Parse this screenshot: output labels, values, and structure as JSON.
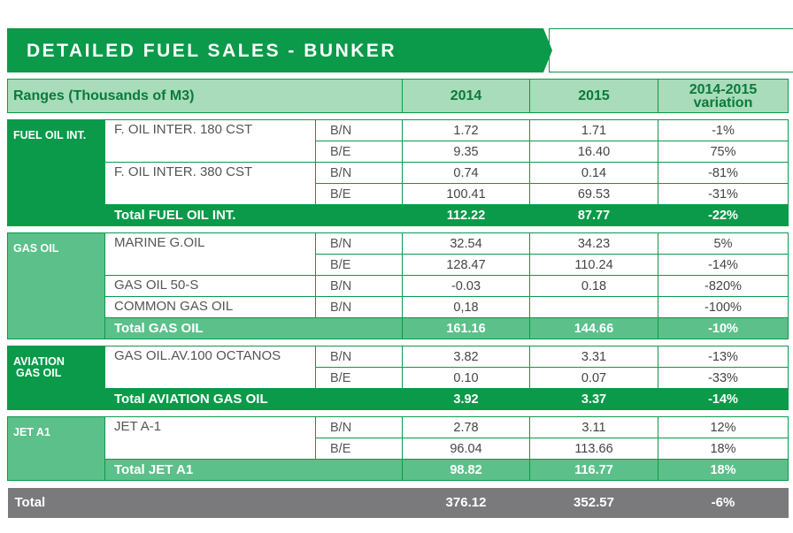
{
  "banner": {
    "title": "DETAILED FUEL SALES - BUNKER"
  },
  "header": {
    "ranges": "Ranges (Thousands of M3)",
    "y2014": "2014",
    "y2015": "2015",
    "variation": "2014-2015 variation"
  },
  "colors": {
    "dark_green": "#0a9a4a",
    "light_green": "#5cc08a",
    "header_green": "#a8dcba",
    "grey": "#7a7a7c"
  },
  "sections": {
    "fuel_oil": {
      "category": "FUEL OIL INT.",
      "rows": [
        {
          "product": "F. OIL INTER. 180 CST",
          "code": "B/N",
          "v2014": "1.72",
          "v2015": "1.71",
          "var": "-1%"
        },
        {
          "product": "",
          "code": "B/E",
          "v2014": "9.35",
          "v2015": "16.40",
          "var": "75%"
        },
        {
          "product": "F. OIL INTER. 380 CST",
          "code": "B/N",
          "v2014": "0.74",
          "v2015": "0.14",
          "var": "-81%"
        },
        {
          "product": "",
          "code": "B/E",
          "v2014": "100.41",
          "v2015": "69.53",
          "var": "-31%"
        }
      ],
      "total": {
        "label": "Total FUEL OIL INT.",
        "v2014": "112.22",
        "v2015": "87.77",
        "var": "-22%"
      }
    },
    "gas_oil": {
      "category": "GAS OIL",
      "rows": [
        {
          "product": "MARINE G.OIL",
          "code": "B/N",
          "v2014": "32.54",
          "v2015": "34.23",
          "var": "5%"
        },
        {
          "product": "",
          "code": "B/E",
          "v2014": "128.47",
          "v2015": "110.24",
          "var": "-14%"
        },
        {
          "product": "GAS OIL 50-S",
          "code": "B/N",
          "v2014": "-0.03",
          "v2015": "0.18",
          "var": "-820%"
        },
        {
          "product": "COMMON GAS OIL",
          "code": "B/N",
          "v2014": "0,18",
          "v2015": "",
          "var": "-100%"
        }
      ],
      "total": {
        "label": "Total GAS OIL",
        "v2014": "161.16",
        "v2015": "144.66",
        "var": "-10%"
      }
    },
    "aviation": {
      "category_line1": "AVIATION",
      "category_line2": "GAS OIL",
      "rows": [
        {
          "product": "GAS OIL.AV.100 OCTANOS",
          "code": "B/N",
          "v2014": "3.82",
          "v2015": "3.31",
          "var": "-13%"
        },
        {
          "product": "",
          "code": "B/E",
          "v2014": "0.10",
          "v2015": "0.07",
          "var": "-33%"
        }
      ],
      "total": {
        "label": "Total AVIATION GAS OIL",
        "v2014": "3.92",
        "v2015": "3.37",
        "var": "-14%"
      }
    },
    "jet": {
      "category": "JET A1",
      "rows": [
        {
          "product": "JET A-1",
          "code": "B/N",
          "v2014": "2.78",
          "v2015": "3.11",
          "var": "12%"
        },
        {
          "product": "",
          "code": "B/E",
          "v2014": "96.04",
          "v2015": "113.66",
          "var": "18%"
        }
      ],
      "total": {
        "label": "Total JET A1",
        "v2014": "98.82",
        "v2015": "116.77",
        "var": "18%"
      }
    }
  },
  "grand_total": {
    "label": "Total",
    "v2014": "376.12",
    "v2015": "352.57",
    "var": "-6%"
  }
}
